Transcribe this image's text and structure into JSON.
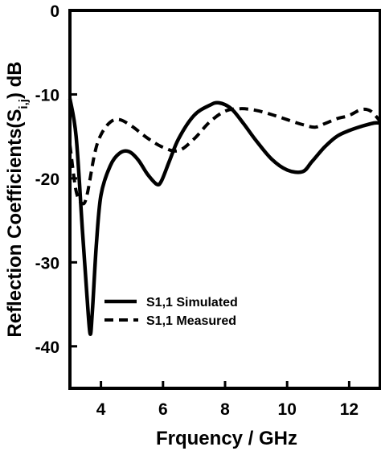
{
  "chart_data": {
    "type": "line",
    "title": "",
    "xlabel": "Frquency / GHz",
    "ylabel_main": "Reflection Coefficients(S",
    "ylabel_sub": "i,j",
    "ylabel_tail": ") dB",
    "xlim": [
      3,
      13
    ],
    "ylim": [
      -45,
      0
    ],
    "xticks": [
      4,
      6,
      8,
      10,
      12
    ],
    "xtick_labels": [
      "4",
      "6",
      "8",
      "10",
      "12"
    ],
    "yticks": [
      0,
      -10,
      -20,
      -30,
      -40
    ],
    "ytick_labels": [
      "0",
      "-10",
      "-20",
      "-30",
      "-40"
    ],
    "grid": false,
    "legend_position": "lower-left",
    "series": [
      {
        "name": "S1,1 Simulated",
        "style": "solid",
        "color": "#000000",
        "x": [
          3.0,
          3.2,
          3.4,
          3.55,
          3.65,
          3.72,
          3.85,
          4.0,
          4.3,
          4.6,
          4.9,
          5.2,
          5.5,
          5.8,
          5.95,
          6.2,
          6.5,
          7.0,
          7.5,
          7.8,
          8.2,
          8.6,
          9.0,
          9.5,
          10.0,
          10.5,
          10.8,
          11.2,
          11.6,
          12.0,
          12.4,
          12.8,
          13.0
        ],
        "y": [
          -10.5,
          -15.0,
          -26.0,
          -34.0,
          -38.5,
          -36.0,
          -28.0,
          -22.0,
          -18.5,
          -17.0,
          -16.8,
          -17.8,
          -19.5,
          -20.7,
          -20.3,
          -18.0,
          -15.3,
          -12.5,
          -11.3,
          -11.0,
          -11.7,
          -13.5,
          -15.5,
          -17.7,
          -19.0,
          -19.2,
          -18.0,
          -16.3,
          -15.0,
          -14.3,
          -13.8,
          -13.4,
          -13.4
        ]
      },
      {
        "name": "S1,1 Measured",
        "style": "dashed",
        "color": "#000000",
        "x": [
          3.0,
          3.2,
          3.4,
          3.55,
          3.8,
          4.0,
          4.3,
          4.6,
          5.0,
          5.5,
          6.0,
          6.5,
          7.0,
          7.5,
          8.0,
          8.5,
          9.0,
          9.5,
          10.0,
          10.5,
          10.9,
          11.2,
          11.6,
          12.0,
          12.4,
          12.7,
          13.0
        ],
        "y": [
          -16.0,
          -21.5,
          -23.0,
          -22.0,
          -17.0,
          -14.8,
          -13.3,
          -13.0,
          -13.8,
          -15.2,
          -16.3,
          -16.7,
          -15.3,
          -13.3,
          -12.0,
          -11.7,
          -11.9,
          -12.4,
          -13.0,
          -13.6,
          -13.9,
          -13.5,
          -12.9,
          -12.5,
          -11.8,
          -12.0,
          -13.2
        ]
      }
    ]
  }
}
